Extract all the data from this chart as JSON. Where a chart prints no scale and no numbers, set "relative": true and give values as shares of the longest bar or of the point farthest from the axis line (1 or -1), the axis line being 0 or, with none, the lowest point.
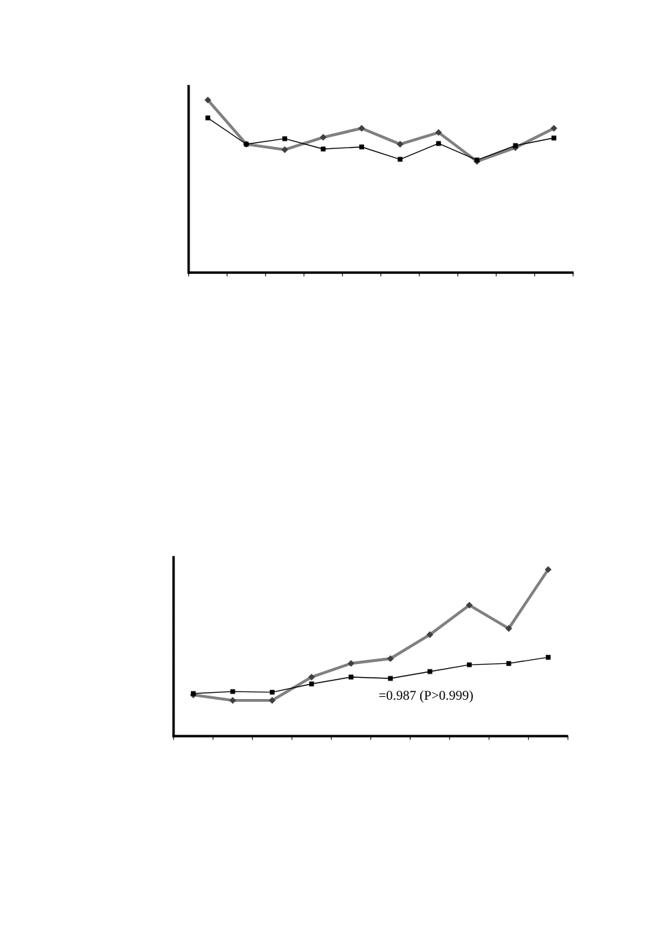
{
  "chart_data": [
    {
      "type": "line",
      "relative": true,
      "categories": [
        null,
        null,
        null,
        null,
        null,
        null,
        null,
        null,
        null,
        null
      ],
      "line_style": "solid",
      "grid": false,
      "legend": false,
      "series": [
        {
          "color": "#808080",
          "marker": "diamond",
          "values": [
            1,
            0.744,
            0.712,
            0.784,
            0.836,
            0.744,
            0.812,
            0.644,
            0.724,
            0.836
          ]
        },
        {
          "color": "#000000",
          "marker": "square",
          "values": [
            0.896,
            0.744,
            0.776,
            0.716,
            0.728,
            0.656,
            0.748,
            0.652,
            0.736,
            0.78
          ]
        }
      ]
    },
    {
      "type": "line",
      "relative": true,
      "categories": [
        null,
        null,
        null,
        null,
        null,
        null,
        null,
        null,
        null,
        null
      ],
      "line_style": "solid",
      "grid": false,
      "legend": false,
      "annotations": [
        "=0.987 (P>0.999)"
      ],
      "series": [
        {
          "color": "#808080",
          "marker": "diamond",
          "values": [
            0.247,
            0.214,
            0.214,
            0.354,
            0.436,
            0.465,
            0.609,
            0.786,
            0.646,
            1
          ]
        },
        {
          "color": "#000000",
          "marker": "square",
          "values": [
            0.255,
            0.267,
            0.263,
            0.313,
            0.354,
            0.346,
            0.387,
            0.428,
            0.436,
            0.473
          ]
        }
      ]
    }
  ]
}
